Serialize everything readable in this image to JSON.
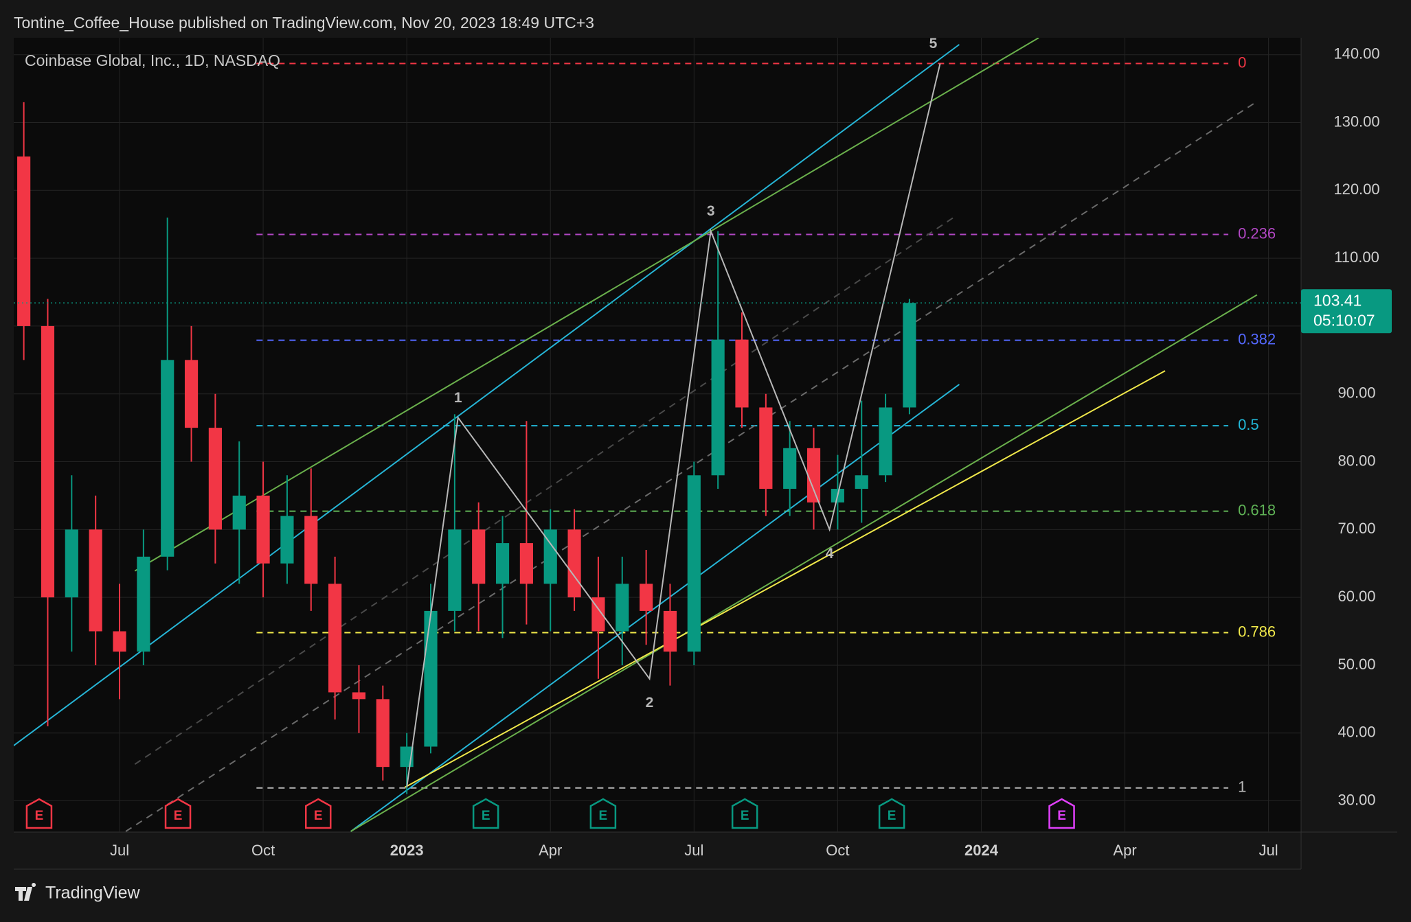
{
  "header": "Tontine_Coffee_House published on TradingView.com, Nov 20, 2023 18:49 UTC+3",
  "footer": "TradingView",
  "chart_data": {
    "type": "candlestick",
    "title": "Coinbase Global, Inc., 1D, NASDAQ",
    "x": [
      -2.0,
      -1.5,
      -1.0,
      -0.5,
      0.0,
      0.5,
      1.0,
      1.5,
      2.0,
      2.5,
      3.0,
      3.5,
      4.0,
      4.5,
      5.0,
      5.5,
      6.0,
      6.5,
      7.0,
      7.5,
      8.0,
      8.5,
      9.0,
      9.5,
      10.0,
      10.5,
      11.0,
      11.5,
      12.0,
      12.5,
      13.0,
      13.5,
      14.0,
      14.5,
      15.0,
      15.5,
      16.0,
      16.5
    ],
    "open": [
      125,
      100,
      60,
      70,
      55,
      52,
      66,
      95,
      85,
      70,
      75,
      65,
      72,
      62,
      46,
      45,
      35,
      38,
      58,
      70,
      62,
      68,
      62,
      70,
      60,
      55,
      62,
      58,
      52,
      78,
      98,
      88,
      76,
      82,
      74,
      76,
      78,
      88
    ],
    "high": [
      133,
      104,
      78,
      75,
      62,
      70,
      116,
      100,
      90,
      83,
      80,
      78,
      79,
      66,
      50,
      47,
      40,
      62,
      87,
      74,
      72,
      86,
      73,
      73,
      66,
      66,
      67,
      62,
      80,
      114,
      102,
      90,
      86,
      85,
      81,
      89,
      90,
      104
    ],
    "low": [
      95,
      41,
      52,
      50,
      45,
      50,
      64,
      80,
      65,
      62,
      60,
      62,
      58,
      42,
      40,
      33,
      31,
      37,
      55,
      55,
      54,
      56,
      55,
      58,
      48,
      50,
      53,
      47,
      50,
      76,
      85,
      72,
      72,
      70,
      70,
      71,
      77,
      87
    ],
    "close": [
      100,
      60,
      70,
      55,
      52,
      66,
      95,
      85,
      70,
      75,
      65,
      72,
      62,
      46,
      45,
      35,
      38,
      58,
      70,
      62,
      68,
      62,
      70,
      60,
      55,
      62,
      58,
      52,
      78,
      98,
      88,
      76,
      82,
      74,
      76,
      78,
      88,
      103.41
    ],
    "up_color": "#089981",
    "down_color": "#f23645",
    "xlim": [
      -2.21,
      24.68
    ],
    "xticks": [
      {
        "value": 0,
        "label": "Jul"
      },
      {
        "value": 3,
        "label": "Oct"
      },
      {
        "value": 6,
        "label": "2023"
      },
      {
        "value": 9,
        "label": "Apr"
      },
      {
        "value": 12,
        "label": "Jul"
      },
      {
        "value": 15,
        "label": "Oct"
      },
      {
        "value": 18,
        "label": "2024"
      },
      {
        "value": 21,
        "label": "Apr"
      },
      {
        "value": 24,
        "label": "Jul"
      }
    ],
    "ylim": [
      25.4,
      142.5
    ],
    "yticks": [
      {
        "value": 30,
        "label": "30.00"
      },
      {
        "value": 40,
        "label": "40.00"
      },
      {
        "value": 50,
        "label": "50.00"
      },
      {
        "value": 60,
        "label": "60.00"
      },
      {
        "value": 70,
        "label": "70.00"
      },
      {
        "value": 80,
        "label": "80.00"
      },
      {
        "value": 90,
        "label": "90.00"
      },
      {
        "value": 100,
        "label": "100.00"
      },
      {
        "value": 110,
        "label": "110.00"
      },
      {
        "value": 120,
        "label": "120.00"
      },
      {
        "value": 130,
        "label": "130.00"
      },
      {
        "value": 140,
        "label": "140.00"
      }
    ],
    "grid": true,
    "last_price": {
      "value": 103.41,
      "countdown": "05:10:07",
      "color": "#089981"
    },
    "fib": {
      "x_start": 2.86,
      "x_end": 23.16,
      "levels": [
        {
          "ratio": 0,
          "price": 138.7,
          "color": "#f23645"
        },
        {
          "ratio": 0.236,
          "price": 113.5,
          "color": "#b247c4"
        },
        {
          "ratio": 0.382,
          "price": 97.9,
          "color": "#5468ff"
        },
        {
          "ratio": 0.5,
          "price": 85.3,
          "color": "#22b8d8"
        },
        {
          "ratio": 0.618,
          "price": 72.7,
          "color": "#5fb256"
        },
        {
          "ratio": 0.786,
          "price": 54.8,
          "color": "#f0e84a"
        },
        {
          "ratio": 1,
          "price": 31.9,
          "color": "#b8b8b8"
        }
      ]
    },
    "wave": {
      "x": [
        6.0,
        7.07,
        11.07,
        12.35,
        14.83,
        17.14
      ],
      "y": [
        32,
        86.5,
        48,
        114,
        70,
        138.7
      ],
      "labels": [
        null,
        "1",
        "2",
        "3",
        "4",
        "5"
      ],
      "color": "#b8b8b8"
    },
    "trend_lines": [
      {
        "color": "#26b5d6",
        "dash": false,
        "x": [
          -2.22,
          17.54
        ],
        "y": [
          38.1,
          141.5
        ]
      },
      {
        "color": "#6ab04c",
        "dash": false,
        "x": [
          0.32,
          19.2
        ],
        "y": [
          63.9,
          142.5
        ]
      },
      {
        "color": "#26b5d6",
        "dash": false,
        "x": [
          4.83,
          17.54
        ],
        "y": [
          25.5,
          91.4
        ]
      },
      {
        "color": "#6ab04c",
        "dash": false,
        "x": [
          4.83,
          23.76
        ],
        "y": [
          25.5,
          104.6
        ]
      },
      {
        "color": "#f0e84a",
        "dash": false,
        "x": [
          5.96,
          21.84
        ],
        "y": [
          32.0,
          93.4
        ]
      },
      {
        "color": "#6b6b6b",
        "dash": true,
        "x": [
          0.13,
          23.76
        ],
        "y": [
          25.5,
          133.1
        ]
      },
      {
        "color": "#4a4a4a",
        "dash": true,
        "x": [
          0.32,
          17.42
        ],
        "y": [
          35.4,
          116.0
        ]
      }
    ],
    "events": [
      {
        "x": -1.68,
        "label": "E",
        "color": "#f23645"
      },
      {
        "x": 1.22,
        "label": "E",
        "color": "#f23645"
      },
      {
        "x": 4.15,
        "label": "E",
        "color": "#f23645"
      },
      {
        "x": 7.65,
        "label": "E",
        "color": "#089981"
      },
      {
        "x": 10.1,
        "label": "E",
        "color": "#089981"
      },
      {
        "x": 13.06,
        "label": "E",
        "color": "#089981"
      },
      {
        "x": 16.13,
        "label": "E",
        "color": "#089981"
      },
      {
        "x": 19.68,
        "label": "E",
        "color": "#e040fb"
      }
    ]
  }
}
